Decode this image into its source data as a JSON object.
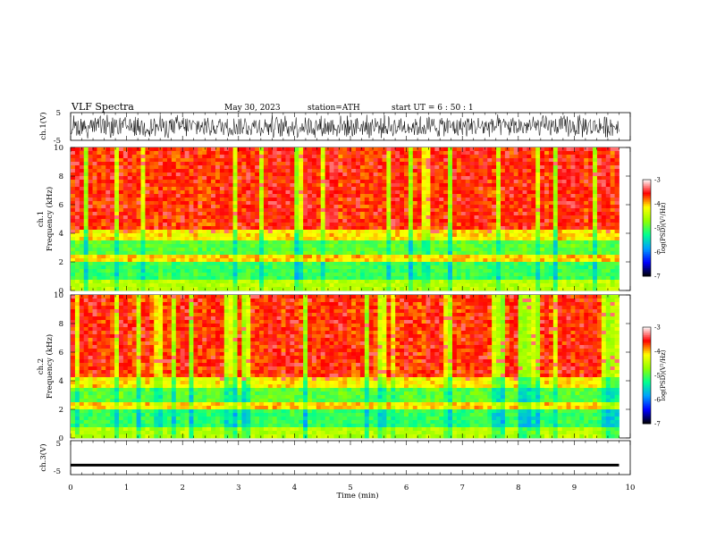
{
  "header": {
    "title": "VLF  Spectra",
    "date": "May 30, 2023",
    "station": "station=ATH",
    "start_ut": "start  UT  =   6  : 50 : 1"
  },
  "chart_data": [
    {
      "type": "line",
      "id": "ch1",
      "ylabel": "ch.1(V)",
      "ylim": [
        -5,
        5
      ],
      "yticks": [
        "5",
        "-5"
      ],
      "xlim": [
        0,
        10
      ],
      "series": [
        {
          "x": [
            0,
            9.8
          ],
          "approx_amplitude": 4.5,
          "approx_center": 0
        }
      ]
    },
    {
      "type": "heatmap",
      "id": "spec1",
      "ylabel": [
        "ch.1",
        "Frequency  (kHz)"
      ],
      "ylim": [
        0,
        10
      ],
      "yticks": [
        "0",
        "2",
        "4",
        "6",
        "8",
        "10"
      ],
      "xlim": [
        0,
        10
      ],
      "data_end_min": 9.8,
      "colorbar": {
        "label": "log(PSD)(V²/Hz)",
        "range": [
          -7,
          -3
        ],
        "ticks": [
          "-3",
          "-4",
          "-5",
          "-6",
          "-7"
        ]
      }
    },
    {
      "type": "heatmap",
      "id": "spec2",
      "ylabel": [
        "ch.2",
        "Frequency  (kHz)"
      ],
      "ylim": [
        0,
        10
      ],
      "yticks": [
        "0",
        "2",
        "4",
        "6",
        "8",
        "10"
      ],
      "xlim": [
        0,
        10
      ],
      "data_end_min": 9.8,
      "colorbar": {
        "label": "log(PSD)(V²/Hz)",
        "range": [
          -7,
          -3
        ],
        "ticks": [
          "-3",
          "-4",
          "-5",
          "-6",
          "-7"
        ]
      }
    },
    {
      "type": "line",
      "id": "ch3",
      "ylabel": "ch.3(V)",
      "ylim": [
        -5,
        5
      ],
      "yticks": [
        "5",
        "-5"
      ],
      "xlim": [
        0,
        10
      ],
      "series": [
        {
          "x": [
            0,
            9.8
          ],
          "approx_level": -2.2
        }
      ]
    }
  ],
  "x_axis": {
    "label": "Time  (min)",
    "ticks": [
      "0",
      "1",
      "2",
      "3",
      "4",
      "5",
      "6",
      "7",
      "8",
      "9",
      "10"
    ]
  },
  "colors": {
    "scale": [
      "#000000",
      "#0000ff",
      "#00a0ff",
      "#00ff90",
      "#90ff00",
      "#ffff00",
      "#ff0000",
      "#ffffff"
    ]
  }
}
